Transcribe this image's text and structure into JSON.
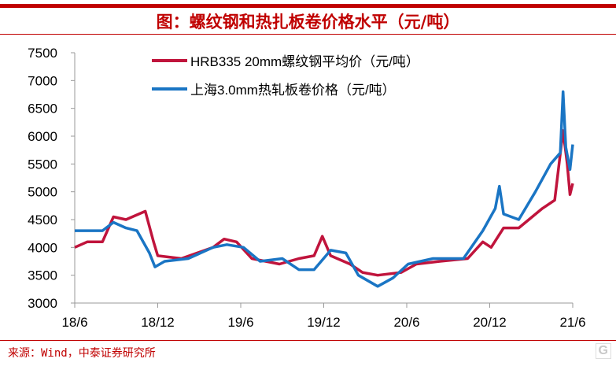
{
  "title": "图：螺纹钢和热扎板卷价格水平（元/吨）",
  "source": "来源：Wind，中泰证券研究所",
  "watermark": "格隆汇",
  "chart_data": {
    "type": "line",
    "title": "螺纹钢和热扎板卷价格水平（元/吨）",
    "xlabel": "",
    "ylabel": "",
    "ylim": [
      3000,
      7500
    ],
    "yticks": [
      "3000",
      "3500",
      "4000",
      "4500",
      "5000",
      "5500",
      "6000",
      "6500",
      "7000",
      "7500"
    ],
    "xticks": [
      "18/6",
      "18/12",
      "19/6",
      "19/12",
      "20/6",
      "20/12",
      "21/6"
    ],
    "x_unit": "months since 2018-06",
    "legend": "top-left",
    "series": [
      {
        "name": "HRB335 20mm螺纹钢平均价（元/吨）",
        "color": "#c0143c",
        "x": [
          0,
          0.9,
          2,
          2.8,
          3.7,
          5.1,
          5.7,
          6,
          7.7,
          10,
          10.8,
          11.7,
          12.8,
          14.8,
          16.2,
          17.3,
          17.9,
          18.5,
          19.9,
          20.8,
          21.9,
          23.6,
          24.7,
          26.4,
          28.4,
          29.5,
          30.1,
          31,
          32.1,
          33.8,
          34.7,
          35.3,
          35.6,
          35.8,
          36
        ],
        "values": [
          4000,
          4100,
          4100,
          4550,
          4500,
          4650,
          4100,
          3850,
          3800,
          4000,
          4150,
          4100,
          3800,
          3700,
          3800,
          3850,
          4200,
          3850,
          3700,
          3550,
          3500,
          3550,
          3700,
          3750,
          3800,
          4100,
          4000,
          4350,
          4350,
          4700,
          4850,
          6100,
          5500,
          4950,
          5150
        ]
      },
      {
        "name": "上海3.0mm热轧板卷价格（元/吨）",
        "color": "#1a75c4",
        "x": [
          0,
          2,
          2.8,
          3.7,
          4.5,
          5.4,
          5.8,
          6.5,
          8.2,
          10,
          11,
          12.2,
          13.4,
          15,
          16.2,
          17.3,
          18.5,
          19.6,
          20.5,
          21.9,
          23,
          24.1,
          25.9,
          28.1,
          29.5,
          30.4,
          30.7,
          31,
          32.1,
          33.3,
          34.4,
          35.1,
          35.3,
          35.5,
          35.8,
          36
        ],
        "values": [
          4300,
          4300,
          4450,
          4350,
          4300,
          3900,
          3650,
          3750,
          3800,
          4000,
          4050,
          4000,
          3750,
          3800,
          3600,
          3600,
          3950,
          3900,
          3500,
          3300,
          3450,
          3700,
          3800,
          3800,
          4300,
          4700,
          5100,
          4600,
          4500,
          5000,
          5500,
          5700,
          6800,
          5800,
          5400,
          5850
        ]
      }
    ]
  }
}
